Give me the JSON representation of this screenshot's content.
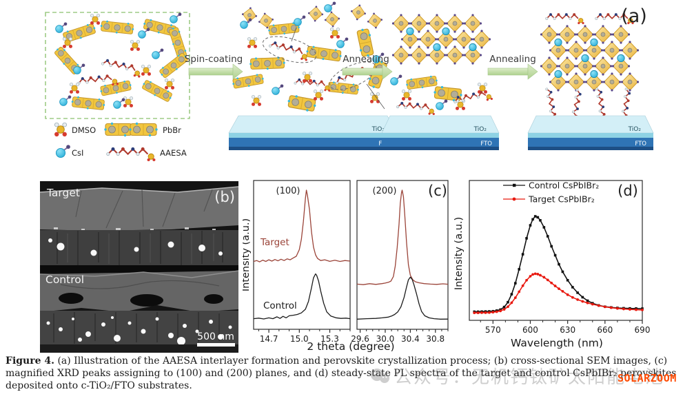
{
  "figure": {
    "panel_a": {
      "label": "(a)",
      "arrows": [
        "Spin-coating",
        "Annealing",
        "Annealing"
      ],
      "legend": [
        "DMSO",
        "PbBr",
        "CsI",
        "AAESA"
      ],
      "substrate": {
        "tio2": "TiO₂",
        "fto": "FTO"
      }
    },
    "panel_b": {
      "label": "(b)",
      "target": "Target",
      "control": "Control",
      "scalebar": "500 nm"
    },
    "panel_c": {
      "label": "(c)"
    },
    "panel_d": {
      "label": "(d)"
    }
  },
  "caption": {
    "label": "Figure 4.",
    "text": " (a) Illustration of the AAESA interlayer formation and perovskite crystallization process; (b) cross-sectional SEM images, (c) magnified XRD peaks assigning to (100) and (200) planes, and (d) steady-state PL spectra of the target and control CsPbIBr₂ perovskites deposited onto c-TiO₂/FTO substrates."
  },
  "watermark": {
    "wechat_text": "公众号：无机钙钛矿太阳能电池",
    "brand": "SOLARZOOM"
  },
  "colors": {
    "target_xrd": "#9a4338",
    "control_xrd": "#1a1a1a",
    "control_pl": "#111111",
    "target_pl": "#e8190f",
    "arrow_green": "#bcd79c",
    "perovskite_gold": "#eab33b",
    "cs_cyan": "#2bb1d8",
    "tio2_cyan": "#d3eff7",
    "fto_blue": "#2f74b5",
    "brand_orange": "#ff4a00"
  },
  "chart_data": [
    {
      "id": "xrd_100",
      "type": "line",
      "title": "(100)",
      "xlabel": "2 theta (degree)",
      "ylabel": "Intensity (a.u.)",
      "xlim": [
        14.55,
        15.5
      ],
      "xticks": [
        "14.7",
        "15.0",
        "15.3"
      ],
      "legend_position": "none",
      "grid": false,
      "series": [
        {
          "name": "Target",
          "color": "#9a4338",
          "x": [
            14.55,
            14.58,
            14.61,
            14.64,
            14.67,
            14.7,
            14.73,
            14.76,
            14.79,
            14.82,
            14.85,
            14.88,
            14.91,
            14.94,
            14.97,
            15.0,
            15.02,
            15.04,
            15.06,
            15.07,
            15.08,
            15.1,
            15.12,
            15.14,
            15.16,
            15.18,
            15.21,
            15.25,
            15.3,
            15.35,
            15.4,
            15.45,
            15.5
          ],
          "y": [
            0.455,
            0.462,
            0.452,
            0.465,
            0.455,
            0.468,
            0.458,
            0.47,
            0.46,
            0.472,
            0.462,
            0.475,
            0.468,
            0.482,
            0.495,
            0.545,
            0.625,
            0.76,
            0.94,
            1.0,
            0.96,
            0.85,
            0.68,
            0.565,
            0.505,
            0.478,
            0.462,
            0.468,
            0.456,
            0.464,
            0.455,
            0.462,
            0.458
          ]
        },
        {
          "name": "Control",
          "color": "#1a1a1a",
          "x": [
            14.55,
            14.6,
            14.65,
            14.7,
            14.74,
            14.78,
            14.81,
            14.84,
            14.87,
            14.9,
            14.94,
            14.98,
            15.02,
            15.06,
            15.09,
            15.12,
            15.14,
            15.16,
            15.17,
            15.19,
            15.21,
            15.24,
            15.27,
            15.31,
            15.36,
            15.41,
            15.46,
            15.5
          ],
          "y": [
            0.018,
            0.022,
            0.016,
            0.024,
            0.018,
            0.032,
            0.02,
            0.036,
            0.024,
            0.04,
            0.044,
            0.05,
            0.062,
            0.09,
            0.15,
            0.255,
            0.33,
            0.36,
            0.35,
            0.305,
            0.23,
            0.135,
            0.07,
            0.038,
            0.025,
            0.02,
            0.022,
            0.018
          ]
        }
      ]
    },
    {
      "id": "xrd_200",
      "type": "line",
      "title": "(200)",
      "xlabel": "2 theta (degree)",
      "ylabel": "Intensity (a.u.)",
      "xlim": [
        29.55,
        31.0
      ],
      "xticks": [
        "29.6",
        "30.0",
        "30.4",
        "30.8"
      ],
      "legend_position": "none",
      "grid": false,
      "series": [
        {
          "name": "Target",
          "color": "#9a4338",
          "x": [
            29.55,
            29.65,
            29.75,
            29.85,
            29.95,
            30.0,
            30.05,
            30.09,
            30.13,
            30.16,
            30.19,
            30.22,
            30.24,
            30.26,
            30.27,
            30.29,
            30.31,
            30.34,
            30.37,
            30.4,
            30.44,
            30.48,
            30.54,
            30.62,
            30.72,
            30.82,
            30.92,
            31.0
          ],
          "y": [
            0.282,
            0.278,
            0.285,
            0.28,
            0.286,
            0.29,
            0.296,
            0.305,
            0.34,
            0.42,
            0.56,
            0.74,
            0.9,
            0.98,
            1.0,
            0.95,
            0.82,
            0.6,
            0.43,
            0.35,
            0.315,
            0.3,
            0.292,
            0.286,
            0.282,
            0.28,
            0.284,
            0.281
          ]
        },
        {
          "name": "Control",
          "color": "#1a1a1a",
          "x": [
            29.55,
            29.7,
            29.85,
            29.95,
            30.05,
            30.1,
            30.15,
            30.2,
            30.25,
            30.3,
            30.34,
            30.37,
            30.4,
            30.43,
            30.46,
            30.5,
            30.54,
            30.58,
            30.63,
            30.7,
            30.78,
            30.88,
            31.0
          ],
          "y": [
            0.014,
            0.018,
            0.02,
            0.024,
            0.03,
            0.038,
            0.05,
            0.07,
            0.108,
            0.18,
            0.26,
            0.315,
            0.335,
            0.318,
            0.275,
            0.205,
            0.13,
            0.072,
            0.04,
            0.024,
            0.018,
            0.014,
            0.015
          ]
        }
      ]
    },
    {
      "id": "pl",
      "type": "line",
      "title": "",
      "xlabel": "Wavelength (nm)",
      "ylabel": "Intensity (a.u.)",
      "xlim": [
        551,
        690
      ],
      "xticks": [
        "570",
        "600",
        "630",
        "660",
        "690"
      ],
      "legend_position": "top-left-inside",
      "grid": false,
      "series": [
        {
          "name": "Control CsPbIBr₂",
          "color": "#111111",
          "marker": "square",
          "x": [
            555,
            558,
            561,
            564,
            567,
            570,
            573,
            576,
            579,
            582,
            585,
            588,
            591,
            594,
            597,
            600,
            602,
            604,
            606,
            608,
            611,
            614,
            617,
            620,
            623,
            626,
            630,
            634,
            638,
            642,
            646,
            650,
            655,
            660,
            665,
            670,
            675,
            680,
            685,
            690
          ],
          "y": [
            0.045,
            0.045,
            0.046,
            0.047,
            0.048,
            0.05,
            0.056,
            0.066,
            0.092,
            0.14,
            0.22,
            0.33,
            0.47,
            0.62,
            0.78,
            0.91,
            0.97,
            1.0,
            0.99,
            0.96,
            0.89,
            0.8,
            0.7,
            0.61,
            0.52,
            0.445,
            0.36,
            0.29,
            0.235,
            0.19,
            0.155,
            0.13,
            0.108,
            0.095,
            0.088,
            0.083,
            0.08,
            0.078,
            0.077,
            0.076
          ]
        },
        {
          "name": "Target CsPbIBr₂",
          "color": "#e8190f",
          "marker": "circle",
          "x": [
            555,
            558,
            561,
            564,
            567,
            570,
            573,
            576,
            579,
            582,
            585,
            588,
            591,
            594,
            597,
            600,
            602,
            604,
            606,
            608,
            611,
            614,
            617,
            620,
            623,
            626,
            630,
            634,
            638,
            642,
            646,
            650,
            655,
            660,
            665,
            670,
            675,
            680,
            685,
            690
          ],
          "y": [
            0.034,
            0.034,
            0.035,
            0.035,
            0.036,
            0.04,
            0.045,
            0.053,
            0.068,
            0.095,
            0.135,
            0.185,
            0.245,
            0.305,
            0.36,
            0.4,
            0.418,
            0.425,
            0.421,
            0.41,
            0.39,
            0.363,
            0.333,
            0.303,
            0.275,
            0.249,
            0.215,
            0.188,
            0.166,
            0.148,
            0.133,
            0.12,
            0.106,
            0.094,
            0.085,
            0.078,
            0.072,
            0.068,
            0.065,
            0.063
          ]
        }
      ]
    }
  ]
}
